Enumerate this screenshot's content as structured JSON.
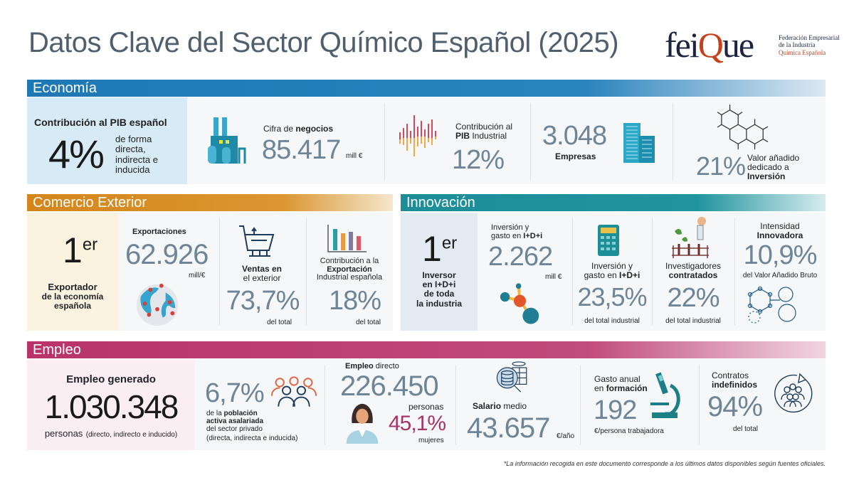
{
  "title": "Datos Clave del Sector Químico Español (2025)",
  "logo": {
    "text": "feiQue",
    "tagline": [
      "Federación Empresarial",
      "de la Industria",
      "Química Española"
    ]
  },
  "colors": {
    "economia": "#1e78b4",
    "comercio": "#d4861a",
    "innovacion": "#1f8f9a",
    "empleo": "#b8336a",
    "numbers": "#6e8497"
  },
  "economia": {
    "header": "Economía",
    "pib": {
      "label": "Contribución al PIB español",
      "value": "4%",
      "desc": [
        "de forma",
        "directa,",
        "indirecta e",
        "inducida"
      ]
    },
    "negocios": {
      "label_a": "Cifra de ",
      "label_b": "negocios",
      "value": "85.417",
      "unit": "mill €",
      "icon": "factory-icon"
    },
    "pib_industrial": {
      "label_a": "Contribución al",
      "label_b": "PIB",
      "label_c": " Industrial",
      "value": "12%",
      "icon": "sound-wave-icon"
    },
    "empresas": {
      "value": "3.048",
      "label": "Empresas",
      "icon": "buildings-icon"
    },
    "inversion": {
      "value": "21%",
      "desc": [
        "Valor añadido",
        "dedicado a"
      ],
      "desc_bold": "Inversión",
      "icon": "molecule-icon"
    }
  },
  "comercio": {
    "header": "Comercio Exterior",
    "rank": {
      "value": "1",
      "sup": "er",
      "desc": [
        "Exportador",
        "de la economía",
        "española"
      ]
    },
    "exportaciones": {
      "label": "Exportaciones",
      "value": "62.926",
      "unit": "mill/€",
      "icon": "globe-icon"
    },
    "ventas": {
      "label": [
        "Ventas en",
        "el exterior"
      ],
      "value": "73,7%",
      "sub": "del total",
      "icon": "cart-icon"
    },
    "contribucion": {
      "label_a": "Contribución a la",
      "label_b": "Exportación",
      "label_c": "Industrial española",
      "value": "18%",
      "sub": "del total",
      "icon": "bar-chart-icon"
    }
  },
  "innovacion": {
    "header": "Innovación",
    "rank": {
      "value": "1",
      "sup": "er",
      "desc": [
        "Inversor",
        "en I+D+i",
        "de toda",
        "la industria"
      ]
    },
    "inversion": {
      "label_a": "Inversión y",
      "label_b": "gasto en ",
      "label_c": "I+D+i",
      "value": "2.262",
      "unit": "mill €",
      "icon": "molecule-icon"
    },
    "inversion_pct": {
      "label_a": "Inversión y",
      "label_b": "gasto en ",
      "label_c": "I+D+i",
      "value": "23,5%",
      "sub": "del total industrial",
      "icon": "calculator-icon"
    },
    "investigadores": {
      "label_a": "Investigadores",
      "label_b": "contratados",
      "value": "22%",
      "sub": "del total industrial",
      "icon": "lab-icon"
    },
    "intensidad": {
      "label_a": "Intensidad",
      "label_b": "Innovadora",
      "value": "10,9%",
      "sub": "del Valor Añadido Bruto",
      "icon": "network-icon"
    }
  },
  "empleo": {
    "header": "Empleo",
    "generado": {
      "label": "Empleo generado",
      "value": "1.030.348",
      "unit": "personas",
      "note": "(directo, indirecto e inducido)"
    },
    "poblacion": {
      "value": "6,7%",
      "desc_a": "de la ",
      "desc_b": "población",
      "desc_c": "activa asalariada",
      "desc_d": "del sector privado",
      "desc_e": "(directa, indirecta e inducida)",
      "icon": "people-group-icon"
    },
    "directo": {
      "label_a": "Empleo",
      "label_b": " directo",
      "value": "226.450",
      "unit": "personas",
      "women": "45,1%",
      "women_label": "mujeres",
      "icon": "woman-icon"
    },
    "salario": {
      "label_a": "Salario",
      "label_b": " medio",
      "value": "43.657",
      "unit": "€/año",
      "icon": "database-search-icon"
    },
    "formacion": {
      "label_a": "Gasto anual",
      "label_b": "en ",
      "label_c": "formación",
      "value": "192",
      "unit": "€/persona trabajadora",
      "icon": "microscope-icon"
    },
    "contratos": {
      "label_a": "Contratos",
      "label_b": "indefinidos",
      "value": "94%",
      "sub": "del total",
      "icon": "people-cycle-icon"
    }
  },
  "footnote": "*La información recogida en este documento corresponde a los últimos datos disponibles según fuentes oficiales."
}
